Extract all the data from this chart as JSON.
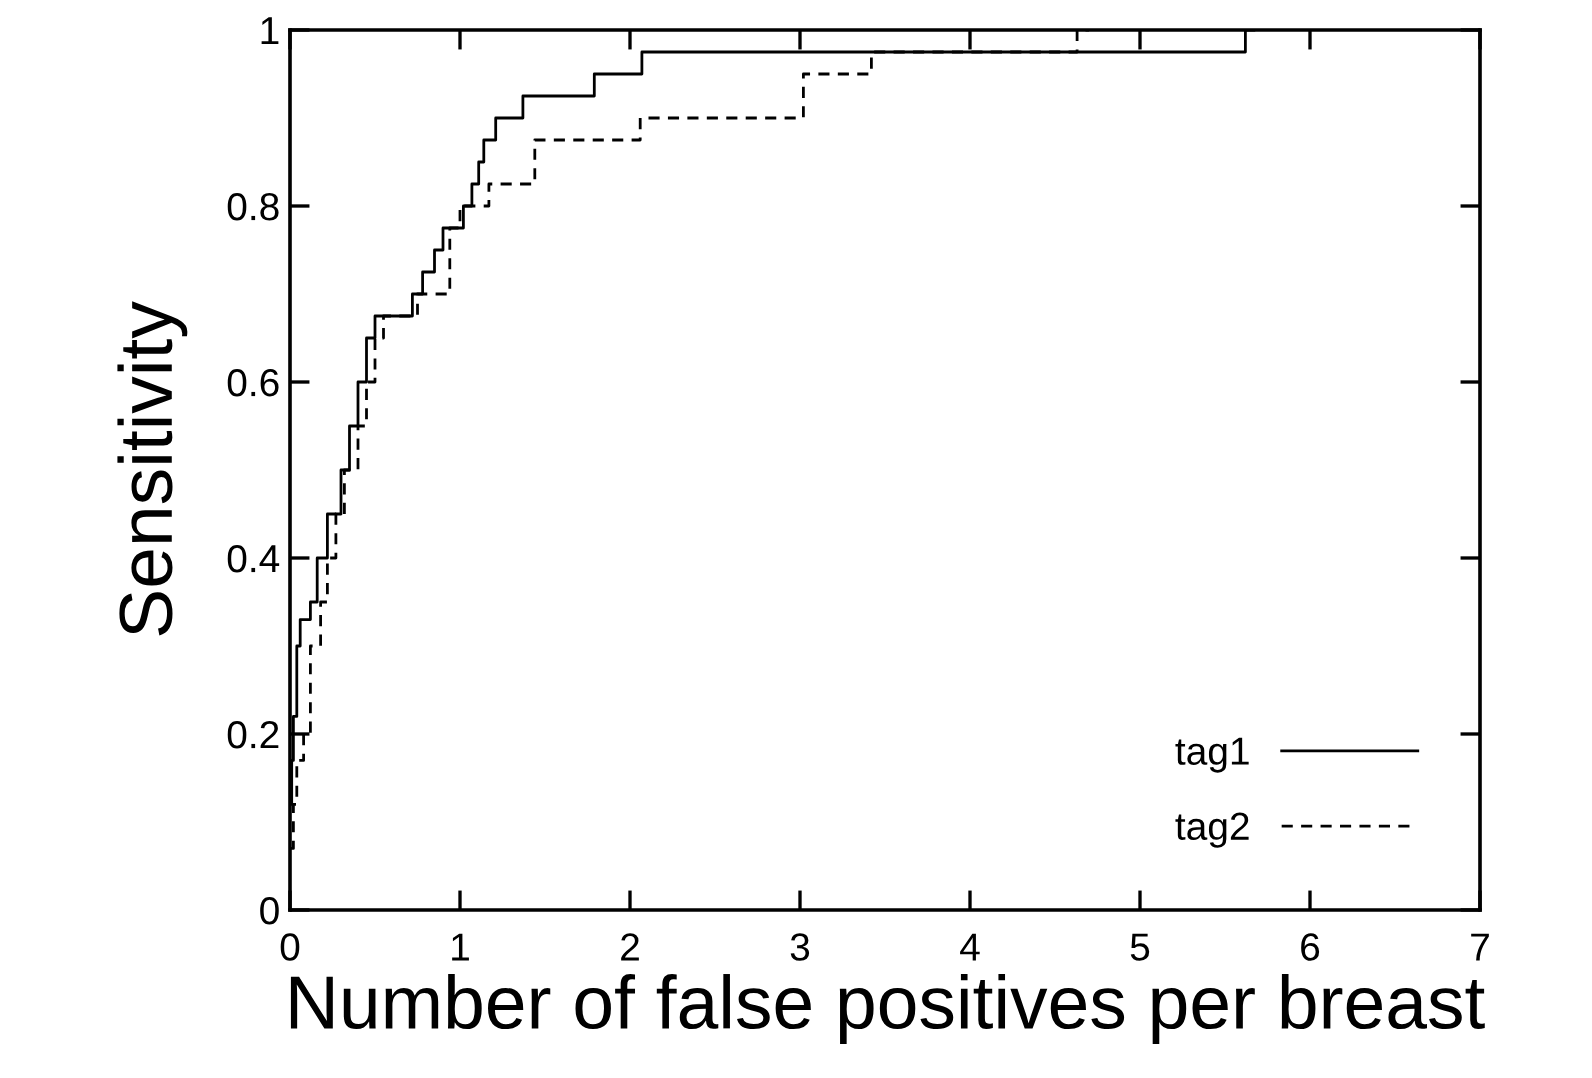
{
  "chart_data": {
    "type": "step",
    "xlabel": "Number of false positives per breast",
    "ylabel": "Sensitivity",
    "xlim": [
      0,
      7
    ],
    "ylim": [
      0,
      1
    ],
    "xticks": [
      0,
      1,
      2,
      3,
      4,
      5,
      6,
      7
    ],
    "yticks": [
      0,
      0.2,
      0.4,
      0.6,
      0.8,
      1
    ],
    "grid": false,
    "legend": "bottom right",
    "series": [
      {
        "name": "tag1",
        "color": "#000000",
        "line_style": "solid",
        "x": [
          0,
          0.01,
          0.02,
          0.04,
          0.06,
          0.12,
          0.16,
          0.22,
          0.3,
          0.35,
          0.4,
          0.45,
          0.5,
          0.72,
          0.78,
          0.85,
          0.9,
          1.02,
          1.07,
          1.11,
          1.14,
          1.21,
          1.37,
          1.79,
          2.07,
          5.62,
          5.67
        ],
        "values": [
          0.12,
          0.17,
          0.22,
          0.3,
          0.33,
          0.35,
          0.4,
          0.45,
          0.5,
          0.55,
          0.6,
          0.65,
          0.675,
          0.7,
          0.725,
          0.75,
          0.775,
          0.8,
          0.825,
          0.85,
          0.875,
          0.9,
          0.925,
          0.95,
          0.975,
          1,
          1
        ]
      },
      {
        "name": "tag2",
        "color": "#000000",
        "line_style": "dashed",
        "x": [
          0,
          0.02,
          0.04,
          0.08,
          0.12,
          0.18,
          0.22,
          0.27,
          0.32,
          0.4,
          0.45,
          0.5,
          0.55,
          0.75,
          0.94,
          1.0,
          1.17,
          1.44,
          2.06,
          3.02,
          3.42,
          4.63,
          4.7
        ],
        "values": [
          0.07,
          0.12,
          0.17,
          0.2,
          0.3,
          0.35,
          0.4,
          0.45,
          0.5,
          0.55,
          0.6,
          0.65,
          0.675,
          0.7,
          0.775,
          0.8,
          0.825,
          0.875,
          0.9,
          0.95,
          0.975,
          1,
          1
        ]
      }
    ]
  }
}
